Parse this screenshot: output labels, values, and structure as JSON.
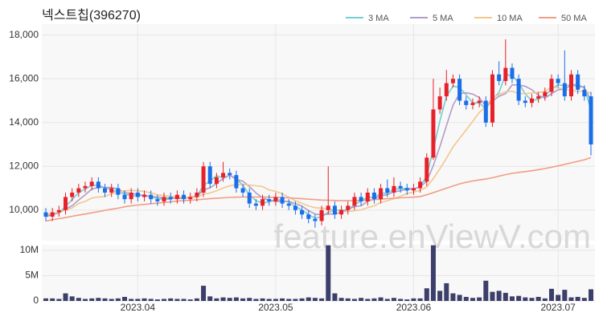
{
  "chart_data": {
    "type": "candlestick",
    "title": "넥스트칩(396270)",
    "watermark": "feature.enViewV.com",
    "up_color": "#e8202a",
    "down_color": "#1a6ee8",
    "volume_color": "#3d3f6b",
    "grid": true,
    "legend": "top-right",
    "categories": [
      null,
      null,
      null,
      null,
      null,
      null,
      null,
      null,
      null,
      null,
      null,
      null,
      null,
      null,
      "2023.04",
      null,
      null,
      null,
      null,
      null,
      null,
      null,
      null,
      null,
      null,
      null,
      null,
      null,
      null,
      null,
      null,
      null,
      null,
      null,
      null,
      "2023.05",
      null,
      null,
      null,
      null,
      null,
      null,
      null,
      null,
      null,
      null,
      null,
      null,
      null,
      null,
      null,
      null,
      null,
      null,
      null,
      null,
      "2023.06",
      null,
      null,
      null,
      null,
      null,
      null,
      null,
      null,
      null,
      null,
      null,
      null,
      null,
      null,
      null,
      null,
      null,
      null,
      null,
      null,
      null,
      "2023.07",
      null,
      null,
      null,
      null,
      null
    ],
    "open": [
      9900,
      9700,
      9900,
      10000,
      10600,
      10800,
      11000,
      11100,
      11300,
      11000,
      10800,
      11000,
      10700,
      10500,
      10800,
      10600,
      10700,
      10500,
      10400,
      10600,
      10500,
      10700,
      10500,
      10600,
      10800,
      12000,
      11200,
      11500,
      11700,
      11600,
      11000,
      10800,
      10300,
      10200,
      10500,
      10400,
      10600,
      10300,
      10200,
      10000,
      9800,
      9600,
      9500,
      10000,
      10200,
      9800,
      10000,
      10200,
      10600,
      10400,
      10800,
      10500,
      11000,
      10800,
      11100,
      11000,
      10900,
      11000,
      11300,
      12400,
      14600,
      15200,
      15800,
      16000,
      15000,
      14800,
      14900,
      15000,
      14000,
      16200,
      15900,
      16500,
      16000,
      15000,
      14900,
      15100,
      15200,
      15400,
      16000,
      15800,
      15200,
      16200,
      15500,
      15200
    ],
    "high": [
      10100,
      10100,
      10200,
      10800,
      11000,
      11200,
      11300,
      11500,
      11500,
      11200,
      11200,
      11200,
      10900,
      11000,
      11000,
      10900,
      10900,
      10700,
      10800,
      10800,
      10900,
      10900,
      10800,
      11000,
      12200,
      12200,
      11700,
      12200,
      11900,
      11800,
      11200,
      11000,
      10500,
      10700,
      10700,
      10800,
      10800,
      10500,
      10400,
      10200,
      10000,
      9800,
      10200,
      12000,
      10400,
      10200,
      10400,
      10800,
      10800,
      11000,
      11000,
      11200,
      11400,
      11500,
      11300,
      11200,
      11200,
      11500,
      12600,
      16000,
      15600,
      16400,
      16200,
      16200,
      15200,
      15100,
      15200,
      15200,
      16400,
      16800,
      17800,
      16700,
      16200,
      15200,
      15300,
      15400,
      15600,
      16200,
      16200,
      17300,
      16400,
      16400,
      15700,
      15400
    ],
    "low": [
      9500,
      9500,
      9700,
      9800,
      10400,
      10600,
      10800,
      10900,
      10800,
      10600,
      10600,
      10500,
      10300,
      10300,
      10400,
      10400,
      10300,
      10200,
      10200,
      10300,
      10300,
      10300,
      10300,
      10400,
      10600,
      11000,
      11000,
      11300,
      11400,
      10800,
      10600,
      10100,
      10000,
      10000,
      10200,
      10200,
      10100,
      10000,
      9800,
      9600,
      9400,
      9200,
      9300,
      9800,
      9600,
      9600,
      9800,
      10000,
      10200,
      10200,
      10300,
      10300,
      10600,
      10600,
      10800,
      10700,
      10700,
      10800,
      11100,
      12300,
      14400,
      15000,
      15600,
      14800,
      14600,
      14600,
      14700,
      13800,
      13800,
      15700,
      15700,
      15800,
      14800,
      14700,
      14700,
      14900,
      15000,
      15200,
      15600,
      15000,
      15000,
      15300,
      15000,
      12500
    ],
    "close": [
      9700,
      9900,
      10000,
      10600,
      10800,
      11000,
      11100,
      11300,
      11000,
      10800,
      11000,
      10700,
      10500,
      10800,
      10600,
      10700,
      10500,
      10400,
      10600,
      10500,
      10700,
      10500,
      10600,
      10800,
      12000,
      11200,
      11500,
      11700,
      11600,
      11000,
      10800,
      10300,
      10200,
      10500,
      10400,
      10600,
      10300,
      10200,
      10000,
      9800,
      9600,
      9500,
      10000,
      10200,
      9800,
      10000,
      10200,
      10600,
      10400,
      10800,
      10500,
      11000,
      10800,
      11100,
      11000,
      10900,
      11000,
      11300,
      12400,
      14600,
      15200,
      15800,
      16000,
      15000,
      14800,
      14900,
      15000,
      14000,
      16200,
      15900,
      16500,
      16000,
      15000,
      14900,
      15100,
      15200,
      15400,
      16000,
      15800,
      15200,
      16200,
      15500,
      15200,
      13000
    ],
    "volume": [
      500000,
      500000,
      400000,
      1500000,
      900000,
      600000,
      400000,
      500000,
      600000,
      500000,
      400000,
      500000,
      800000,
      400000,
      400000,
      500000,
      400000,
      300000,
      400000,
      500000,
      400000,
      400000,
      300000,
      500000,
      3000000,
      900000,
      500000,
      700000,
      600000,
      700000,
      500000,
      600000,
      400000,
      500000,
      400000,
      400000,
      500000,
      400000,
      400000,
      500000,
      700000,
      600000,
      500000,
      11000000,
      1500000,
      600000,
      500000,
      400000,
      600000,
      400000,
      500000,
      700000,
      400000,
      600000,
      400000,
      300000,
      500000,
      500000,
      2500000,
      11000000,
      2000000,
      3500000,
      1500000,
      1200000,
      800000,
      600000,
      700000,
      4000000,
      1800000,
      2000000,
      1600000,
      900000,
      1000000,
      700000,
      600000,
      800000,
      500000,
      2400000,
      1200000,
      2200000,
      700000,
      800000,
      600000,
      2300000
    ],
    "series": [
      {
        "name": "3 MA",
        "color": "#72cfcf",
        "values": [
          9700,
          9800,
          9870,
          10170,
          10470,
          10800,
          10970,
          11130,
          11130,
          11030,
          10930,
          10830,
          10730,
          10670,
          10630,
          10700,
          10600,
          10530,
          10500,
          10500,
          10600,
          10570,
          10600,
          10630,
          11130,
          11330,
          11570,
          11470,
          11600,
          11430,
          11130,
          10700,
          10430,
          10330,
          10370,
          10500,
          10430,
          10370,
          10170,
          10000,
          9800,
          9630,
          9700,
          9900,
          10000,
          10000,
          10000,
          10270,
          10400,
          10600,
          10570,
          10770,
          10770,
          10970,
          10970,
          11000,
          10970,
          11070,
          11570,
          12770,
          14070,
          15200,
          15670,
          15600,
          15270,
          14900,
          14900,
          14630,
          15070,
          15370,
          16200,
          16130,
          15830,
          15300,
          15000,
          15070,
          15230,
          15530,
          15730,
          15670,
          15730,
          15630,
          15630,
          14570
        ]
      },
      {
        "name": "5 MA",
        "color": "#b39bc9",
        "values": [
          9700,
          9800,
          9870,
          10050,
          10200,
          10460,
          10700,
          10960,
          11040,
          11040,
          11040,
          10960,
          10800,
          10760,
          10720,
          10660,
          10620,
          10600,
          10560,
          10540,
          10540,
          10540,
          10580,
          10620,
          10920,
          11020,
          11220,
          11440,
          11600,
          11400,
          11320,
          11080,
          10780,
          10560,
          10440,
          10400,
          10400,
          10400,
          10300,
          10180,
          9980,
          9820,
          9780,
          9820,
          9820,
          9900,
          10040,
          10160,
          10200,
          10400,
          10500,
          10660,
          10700,
          10840,
          10880,
          10960,
          10960,
          11060,
          11320,
          12040,
          12900,
          13860,
          14800,
          15320,
          15360,
          15300,
          15140,
          14740,
          14980,
          15200,
          15320,
          15720,
          15720,
          15660,
          15500,
          15240,
          15120,
          15320,
          15500,
          15520,
          15720,
          15740,
          15580,
          15020
        ]
      },
      {
        "name": "10 MA",
        "color": "#f2c78e",
        "values": [
          9800,
          9850,
          9900,
          10000,
          10100,
          10300,
          10400,
          10550,
          10600,
          10620,
          10750,
          10830,
          10880,
          10900,
          10880,
          10850,
          10790,
          10700,
          10660,
          10630,
          10600,
          10580,
          10590,
          10580,
          10730,
          10780,
          10880,
          11010,
          11110,
          11160,
          11170,
          11150,
          11110,
          11080,
          10920,
          10860,
          10740,
          10590,
          10430,
          10310,
          10190,
          10110,
          10090,
          10060,
          10000,
          9940,
          9930,
          9970,
          10010,
          10110,
          10200,
          10350,
          10430,
          10520,
          10640,
          10750,
          10830,
          10900,
          11060,
          11440,
          11890,
          12370,
          12890,
          13280,
          13660,
          14060,
          14460,
          14730,
          15130,
          15280,
          15410,
          15430,
          15330,
          15320,
          15350,
          15380,
          15420,
          15620,
          15580,
          15510,
          15480,
          15420,
          15440,
          15340
        ]
      },
      {
        "name": "50 MA",
        "color": "#f29c84",
        "values": [
          9500,
          9560,
          9610,
          9660,
          9720,
          9770,
          9820,
          9880,
          9930,
          9990,
          10040,
          10090,
          10150,
          10200,
          10230,
          10260,
          10290,
          10320,
          10350,
          10380,
          10410,
          10430,
          10450,
          10470,
          10500,
          10520,
          10540,
          10560,
          10580,
          10590,
          10600,
          10600,
          10600,
          10600,
          10590,
          10580,
          10570,
          10560,
          10540,
          10520,
          10500,
          10480,
          10460,
          10450,
          10440,
          10430,
          10430,
          10430,
          10440,
          10460,
          10480,
          10500,
          10520,
          10540,
          10560,
          10580,
          10590,
          10620,
          10700,
          10800,
          10900,
          11000,
          11100,
          11200,
          11270,
          11330,
          11380,
          11420,
          11480,
          11550,
          11620,
          11680,
          11720,
          11760,
          11800,
          11850,
          11900,
          11960,
          12020,
          12090,
          12160,
          12230,
          12300,
          12400
        ]
      }
    ],
    "ylim": [
      8600,
      18500
    ],
    "yticks": [
      {
        "value": 10000,
        "label": "10,000"
      },
      {
        "value": 12000,
        "label": "12,000"
      },
      {
        "value": 14000,
        "label": "14,000"
      },
      {
        "value": 16000,
        "label": "16,000"
      },
      {
        "value": 18000,
        "label": "18,000"
      }
    ],
    "volume_lim": [
      0,
      11100000
    ],
    "volume_ticks": [
      0,
      {
        "value": 5000000,
        "label": "5M"
      },
      {
        "value": 10000000,
        "label": "10M"
      }
    ]
  }
}
